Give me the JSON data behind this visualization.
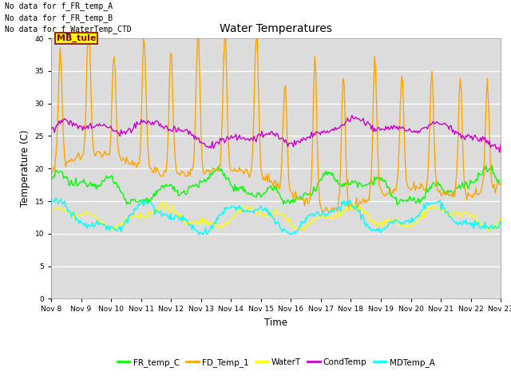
{
  "title": "Water Temperatures",
  "xlabel": "Time",
  "ylabel": "Temperature (C)",
  "ylim": [
    0,
    40
  ],
  "yticks": [
    0,
    5,
    10,
    15,
    20,
    25,
    30,
    35,
    40
  ],
  "x_labels": [
    "Nov 8",
    "Nov 9",
    "Nov 10",
    "Nov 11",
    "Nov 12",
    "Nov 13",
    "Nov 14",
    "Nov 15",
    "Nov 16",
    "Nov 17",
    "Nov 18",
    "Nov 19",
    "Nov 20",
    "Nov 21",
    "Nov 22",
    "Nov 23"
  ],
  "bg_color": "#dcdcdc",
  "fig_color": "#ffffff",
  "annotations": [
    "No data for f_FR_temp_A",
    "No data for f_FR_temp_B",
    "No data for f_WaterTemp_CTD"
  ],
  "mb_tule_label": "MB_tule",
  "legend": [
    {
      "label": "FR_temp_C",
      "color": "#00ff00"
    },
    {
      "label": "FD_Temp_1",
      "color": "#ffa500"
    },
    {
      "label": "WaterT",
      "color": "#ffff00"
    },
    {
      "label": "CondTemp",
      "color": "#cc00cc"
    },
    {
      "label": "MDTemp_A",
      "color": "#00ffff"
    }
  ]
}
